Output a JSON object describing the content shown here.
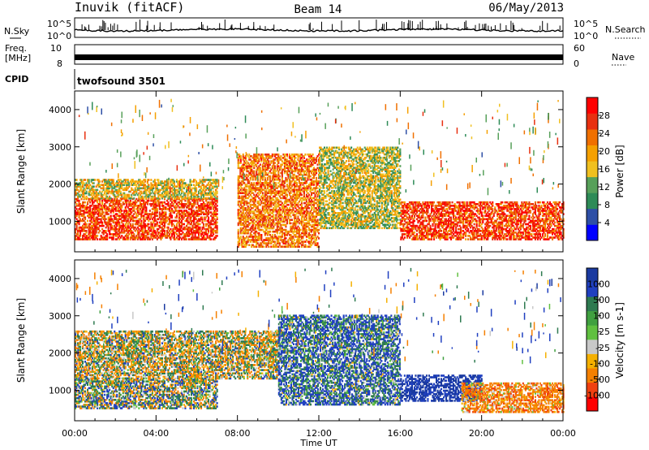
{
  "header": {
    "station": "Inuvik (fitACF)",
    "beam": "Beam 14",
    "date": "06/May/2013"
  },
  "noise_panel": {
    "left_label": "N.Sky",
    "right_label": "N.Search",
    "tick_top": "10^5",
    "tick_bottom": "10^0"
  },
  "freq_panel": {
    "left_label_line1": "Freq.",
    "left_label_line2": "[MHz]",
    "right_label": "Nave",
    "left_tick_top": "10",
    "left_tick_bottom": "8",
    "right_tick_top": "60",
    "right_tick_bottom": "0"
  },
  "cpid_panel": {
    "label": "CPID",
    "program": "twofsound 3501"
  },
  "power_panel": {
    "ylabel": "Slant Range [km]",
    "yticks": [
      "1000",
      "2000",
      "3000",
      "4000"
    ],
    "colorbar_label": "Power [dB]",
    "colorbar_ticks": [
      "4",
      "8",
      "12",
      "16",
      "20",
      "24",
      "28"
    ],
    "colors": [
      "#0000ff",
      "#2e4fa6",
      "#2e8b57",
      "#57a05a",
      "#f0c020",
      "#f5a000",
      "#f07000",
      "#e83010",
      "#ff0000"
    ]
  },
  "velocity_panel": {
    "ylabel": "Slant Range [km]",
    "yticks": [
      "1000",
      "2000",
      "3000",
      "4000"
    ],
    "colorbar_label": "Velocity [m s-1]",
    "colorbar_ticks": [
      "1000",
      "500",
      "100",
      "25",
      "-25",
      "-100",
      "-500",
      "-1000"
    ],
    "colors": [
      "#1a3aa0",
      "#2040c0",
      "#2e7a50",
      "#40a040",
      "#60c040",
      "#c8c8c8",
      "#f5b000",
      "#f58000",
      "#f04010",
      "#ff0000"
    ]
  },
  "time_axis": {
    "label": "Time UT",
    "ticks": [
      "00:00",
      "04:00",
      "08:00",
      "12:00",
      "16:00",
      "20:00",
      "00:00"
    ]
  },
  "chart_data": [
    {
      "type": "heatmap",
      "title": "Power",
      "xlabel": "Time UT",
      "ylabel": "Slant Range [km]",
      "xlim": [
        "00:00",
        "24:00"
      ],
      "ylim": [
        180,
        4500
      ],
      "colorbar": {
        "label": "Power [dB]",
        "range": [
          0,
          30
        ],
        "ticks": [
          4,
          8,
          12,
          16,
          20,
          24,
          28
        ]
      },
      "description_regions": [
        {
          "t_start": 0,
          "t_end": 7,
          "range_km": [
            500,
            1600
          ],
          "power_db": 26
        },
        {
          "t_start": 0,
          "t_end": 7,
          "range_km": [
            1600,
            2100
          ],
          "power_db": 16
        },
        {
          "t_start": 8,
          "t_end": 12,
          "range_km": [
            300,
            2800
          ],
          "power_db": 22
        },
        {
          "t_start": 12,
          "t_end": 16,
          "range_km": [
            800,
            3000
          ],
          "power_db": 14
        },
        {
          "t_start": 16,
          "t_end": 24,
          "range_km": [
            500,
            1500
          ],
          "power_db": 26
        }
      ]
    },
    {
      "type": "heatmap",
      "title": "Velocity",
      "xlabel": "Time UT",
      "ylabel": "Slant Range [km]",
      "xlim": [
        "00:00",
        "24:00"
      ],
      "ylim": [
        180,
        4500
      ],
      "colorbar": {
        "label": "Velocity [m s-1]",
        "range": [
          -1000,
          1000
        ],
        "ticks": [
          1000,
          500,
          100,
          25,
          -25,
          -100,
          -500,
          -1000
        ]
      },
      "description_regions": [
        {
          "t_start": 0,
          "t_end": 7,
          "range_km": [
            500,
            1300
          ],
          "velocity": 100
        },
        {
          "t_start": 0,
          "t_end": 10,
          "range_km": [
            1300,
            2600
          ],
          "velocity": 0
        },
        {
          "t_start": 10,
          "t_end": 16,
          "range_km": [
            600,
            3000
          ],
          "velocity": 300
        },
        {
          "t_start": 16,
          "t_end": 20,
          "range_km": [
            700,
            1400
          ],
          "velocity": 800
        },
        {
          "t_start": 19,
          "t_end": 24,
          "range_km": [
            400,
            1200
          ],
          "velocity": -300
        }
      ]
    }
  ]
}
